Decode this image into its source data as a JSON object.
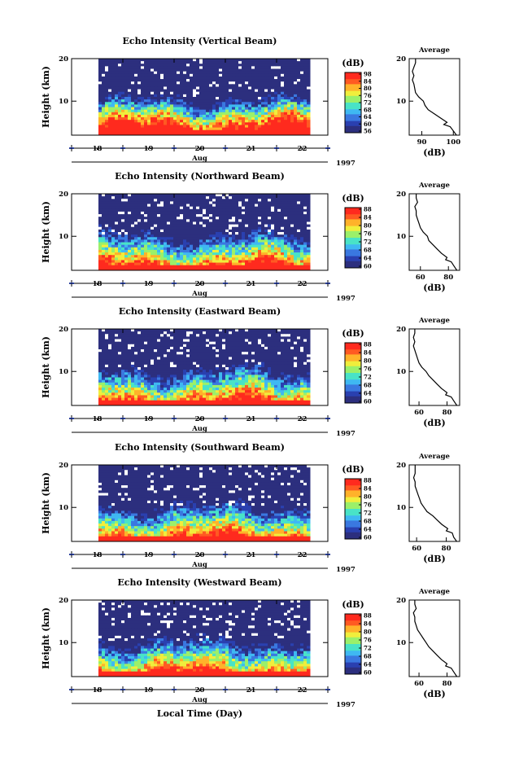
{
  "chart_data": [
    {
      "type": "heatmap",
      "title": "Echo Intensity (Vertical Beam)",
      "ylabel": "Height (km)",
      "yticks": [
        "20",
        "10"
      ],
      "ylim": [
        2,
        20
      ],
      "xticks": [
        "18",
        "19",
        "20",
        "21",
        "22"
      ],
      "xlim": [
        "1997-08-17T12:00",
        "1997-08-23T00:00"
      ],
      "month_label": "Aug",
      "year_label": "1997",
      "colorbar": {
        "unit": "(dB)",
        "ticks": [
          "98",
          "84",
          "80",
          "76",
          "72",
          "68",
          "64",
          "60",
          "56"
        ],
        "min": 56,
        "max": 98
      },
      "average": {
        "title": "Average",
        "xlabel": "(dB)",
        "xticks": [
          "90",
          "100"
        ],
        "xlim": [
          86,
          102
        ],
        "yticks": [
          "20",
          "10"
        ],
        "profile": [
          [
            101,
            2
          ],
          [
            100,
            3
          ],
          [
            99,
            4
          ],
          [
            97,
            4.5
          ],
          [
            98,
            5
          ],
          [
            96,
            6
          ],
          [
            94,
            7
          ],
          [
            92,
            8
          ],
          [
            91,
            9
          ],
          [
            90.5,
            10
          ],
          [
            89,
            11
          ],
          [
            88,
            12
          ],
          [
            87.5,
            14
          ],
          [
            87,
            15
          ],
          [
            87.5,
            16
          ],
          [
            87,
            17
          ],
          [
            87.5,
            18
          ],
          [
            88,
            19
          ],
          [
            88,
            20
          ]
        ]
      }
    },
    {
      "type": "heatmap",
      "title": "Echo Intensity (Northward Beam)",
      "ylabel": "Height (km)",
      "yticks": [
        "20",
        "10"
      ],
      "ylim": [
        2,
        20
      ],
      "xticks": [
        "18",
        "19",
        "20",
        "21",
        "22"
      ],
      "xlim": [
        "1997-08-17T12:00",
        "1997-08-23T00:00"
      ],
      "month_label": "Aug",
      "year_label": "1997",
      "colorbar": {
        "unit": "(dB)",
        "ticks": [
          "88",
          "84",
          "80",
          "76",
          "72",
          "68",
          "64",
          "60"
        ],
        "min": 60,
        "max": 88
      },
      "average": {
        "title": "Average",
        "xlabel": "(dB)",
        "xticks": [
          "60",
          "80"
        ],
        "xlim": [
          52,
          88
        ],
        "yticks": [
          "20",
          "10"
        ],
        "profile": [
          [
            86,
            2
          ],
          [
            84,
            3
          ],
          [
            82,
            4
          ],
          [
            78,
            4.5
          ],
          [
            79,
            5
          ],
          [
            75,
            6
          ],
          [
            72,
            7
          ],
          [
            69,
            8
          ],
          [
            66,
            9
          ],
          [
            65,
            10
          ],
          [
            62,
            11
          ],
          [
            60,
            12
          ],
          [
            59,
            13
          ],
          [
            58,
            14
          ],
          [
            57,
            15
          ],
          [
            57,
            16
          ],
          [
            56,
            17
          ],
          [
            58,
            18
          ],
          [
            57,
            19
          ],
          [
            57,
            20
          ]
        ]
      }
    },
    {
      "type": "heatmap",
      "title": "Echo Intensity (Eastward Beam)",
      "ylabel": "Height (km)",
      "yticks": [
        "20",
        "10"
      ],
      "ylim": [
        2,
        20
      ],
      "xticks": [
        "18",
        "19",
        "20",
        "21",
        "22"
      ],
      "xlim": [
        "1997-08-17T12:00",
        "1997-08-23T00:00"
      ],
      "month_label": "Aug",
      "year_label": "1997",
      "colorbar": {
        "unit": "(dB)",
        "ticks": [
          "88",
          "84",
          "80",
          "76",
          "72",
          "68",
          "64",
          "60"
        ],
        "min": 60,
        "max": 88
      },
      "average": {
        "title": "Average",
        "xlabel": "(dB)",
        "xticks": [
          "60",
          "80"
        ],
        "xlim": [
          53,
          89
        ],
        "yticks": [
          "20",
          "10"
        ],
        "profile": [
          [
            87,
            2
          ],
          [
            85,
            3
          ],
          [
            83,
            4
          ],
          [
            79,
            4.5
          ],
          [
            80,
            5
          ],
          [
            76,
            6
          ],
          [
            73,
            7
          ],
          [
            70,
            8
          ],
          [
            67,
            9
          ],
          [
            65,
            10
          ],
          [
            62,
            11
          ],
          [
            60,
            12
          ],
          [
            59,
            13
          ],
          [
            58,
            14
          ],
          [
            57,
            15
          ],
          [
            56,
            16
          ],
          [
            57,
            17
          ],
          [
            56,
            18
          ],
          [
            57,
            19
          ],
          [
            57,
            20
          ]
        ]
      }
    },
    {
      "type": "heatmap",
      "title": "Echo Intensity (Southward Beam)",
      "ylabel": "Height (km)",
      "yticks": [
        "20",
        "10"
      ],
      "ylim": [
        2,
        20
      ],
      "xticks": [
        "18",
        "19",
        "20",
        "21",
        "22"
      ],
      "xlim": [
        "1997-08-17T12:00",
        "1997-08-23T00:00"
      ],
      "month_label": "Aug",
      "year_label": "1997",
      "colorbar": {
        "unit": "(dB)",
        "ticks": [
          "88",
          "84",
          "80",
          "76",
          "72",
          "68",
          "64",
          "60"
        ],
        "min": 60,
        "max": 88
      },
      "average": {
        "title": "Average",
        "xlabel": "(dB)",
        "xticks": [
          "60",
          "80"
        ],
        "xlim": [
          55,
          89
        ],
        "yticks": [
          "20",
          "10"
        ],
        "profile": [
          [
            87,
            2
          ],
          [
            85,
            3
          ],
          [
            84,
            4
          ],
          [
            80,
            4.5
          ],
          [
            81,
            5
          ],
          [
            77,
            6
          ],
          [
            74,
            7
          ],
          [
            71,
            8
          ],
          [
            67,
            9
          ],
          [
            65,
            10
          ],
          [
            63,
            11
          ],
          [
            62,
            12
          ],
          [
            61,
            13
          ],
          [
            60,
            14
          ],
          [
            59,
            15
          ],
          [
            59,
            16
          ],
          [
            58,
            17
          ],
          [
            59,
            18
          ],
          [
            59,
            19
          ],
          [
            59,
            20
          ]
        ]
      }
    },
    {
      "type": "heatmap",
      "title": "Echo Intensity (Westward Beam)",
      "ylabel": "Height (km)",
      "yticks": [
        "20",
        "10"
      ],
      "ylim": [
        2,
        20
      ],
      "xticks": [
        "18",
        "19",
        "20",
        "21",
        "22"
      ],
      "xlim": [
        "1997-08-17T12:00",
        "1997-08-23T00:00"
      ],
      "month_label": "Aug",
      "year_label": "1997",
      "xlabel": "Local Time (Day)",
      "colorbar": {
        "unit": "(dB)",
        "ticks": [
          "88",
          "84",
          "80",
          "76",
          "72",
          "68",
          "64",
          "60"
        ],
        "min": 60,
        "max": 88
      },
      "average": {
        "title": "Average",
        "xlabel": "(dB)",
        "xticks": [
          "60",
          "80"
        ],
        "xlim": [
          53,
          89
        ],
        "yticks": [
          "20",
          "10"
        ],
        "profile": [
          [
            87,
            2
          ],
          [
            85,
            3
          ],
          [
            83,
            4
          ],
          [
            79,
            4.5
          ],
          [
            80,
            5
          ],
          [
            76,
            6
          ],
          [
            73,
            7
          ],
          [
            70,
            8
          ],
          [
            67,
            9
          ],
          [
            65,
            10
          ],
          [
            63,
            11
          ],
          [
            61,
            12
          ],
          [
            59,
            13
          ],
          [
            58,
            14
          ],
          [
            57,
            15
          ],
          [
            57,
            16
          ],
          [
            56,
            17
          ],
          [
            58,
            18
          ],
          [
            57,
            19
          ],
          [
            57,
            20
          ]
        ]
      }
    }
  ],
  "colors": {
    "background": "#ffffff",
    "axis": "#000000",
    "date_tick_marker": "#2a3f9a",
    "colormap": [
      "#2c2f7e",
      "#2a40b0",
      "#3a78e0",
      "#3fb8f2",
      "#49e3c7",
      "#9bf06a",
      "#f0ee3c",
      "#ffb22a",
      "#ff5a22",
      "#ff2a1e"
    ]
  }
}
